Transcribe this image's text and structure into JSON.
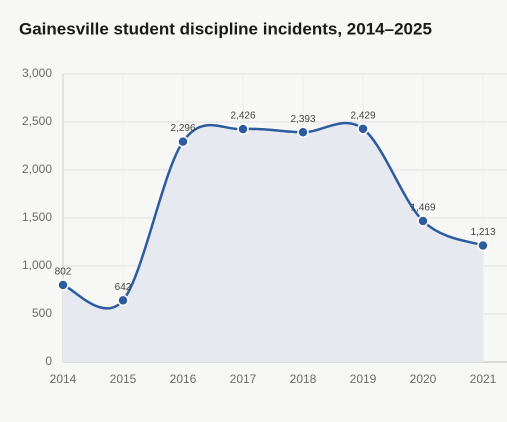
{
  "chart_data": {
    "type": "line",
    "title": "Gainesville student discipline incidents, 2014–2025",
    "categories": [
      "2014",
      "2015",
      "2016",
      "2017",
      "2018",
      "2019",
      "2020",
      "2021"
    ],
    "values": [
      802,
      642,
      2296,
      2426,
      2393,
      2429,
      1469,
      1213
    ],
    "value_labels": [
      "802",
      "642",
      "2,296",
      "2,426",
      "2,393",
      "2,429",
      "1,469",
      "1,213"
    ],
    "color": "#2c5c9e",
    "ylim": [
      0,
      3000
    ],
    "yticks": [
      0,
      500,
      {
        "value": 1000,
        "label": "1,000"
      },
      {
        "value": 1500,
        "label": "1,500"
      },
      {
        "value": 2000,
        "label": "2,000"
      },
      {
        "value": 2500,
        "label": "2,500"
      },
      {
        "value": 3000,
        "label": "3,000"
      }
    ],
    "grid": true
  }
}
